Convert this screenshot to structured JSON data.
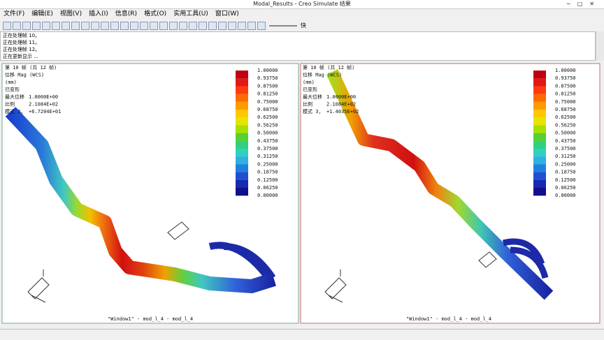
{
  "window": {
    "title": "Modal_Results - Creo Simulate 结果"
  },
  "menu": [
    "文件(F)",
    "编辑(E)",
    "视图(V)",
    "插入(I)",
    "信息(R)",
    "格式(O)",
    "实用工具(U)",
    "窗口(W)"
  ],
  "toolbar": {
    "speed_label": "快"
  },
  "messages": [
    "正在处理帧 10。",
    "正在处理帧 11。",
    "正在处理帧 12。",
    "正在更新显示 ..."
  ],
  "viewports": [
    {
      "frame": "第 10 帧 (共 12 帧)",
      "quantity": "位移 Mag (WCS)",
      "unit": "(mm)",
      "state": "已变形",
      "max_disp_label": "最大位移",
      "max_disp": "1.0000E+00",
      "scale_label": "比例",
      "scale": "2.1084E+02",
      "mode_label": "模式 3,",
      "mode": "+6.7204E+01",
      "legend": [
        "1.00000",
        "0.93750",
        "0.87500",
        "0.81250",
        "0.75000",
        "0.68750",
        "0.62500",
        "0.56250",
        "0.50000",
        "0.43750",
        "0.37500",
        "0.31250",
        "0.25000",
        "0.18750",
        "0.12500",
        "0.06250",
        "0.00000"
      ],
      "footer": "\"Window1\" - mod_l_4 - mod_l_4"
    },
    {
      "frame": "第 10 帧 (共 12 帧)",
      "quantity": "位移 Mag (WCS)",
      "unit": "(mm)",
      "state": "已变形",
      "max_disp_label": "最大位移",
      "max_disp": "1.0000E+00",
      "scale_label": "比例",
      "scale": "2.1084E+02",
      "mode_label": "模式 3,",
      "mode": "+1.4035E+02",
      "legend": [
        "1.00000",
        "0.93750",
        "0.87500",
        "0.81250",
        "0.75000",
        "0.68750",
        "0.62500",
        "0.56250",
        "0.50000",
        "0.43750",
        "0.37500",
        "0.31250",
        "0.25000",
        "0.18750",
        "0.12500",
        "0.06250",
        "0.00000"
      ],
      "footer": "\"Window1\" - mod_l_4 - mod_l_4"
    }
  ]
}
